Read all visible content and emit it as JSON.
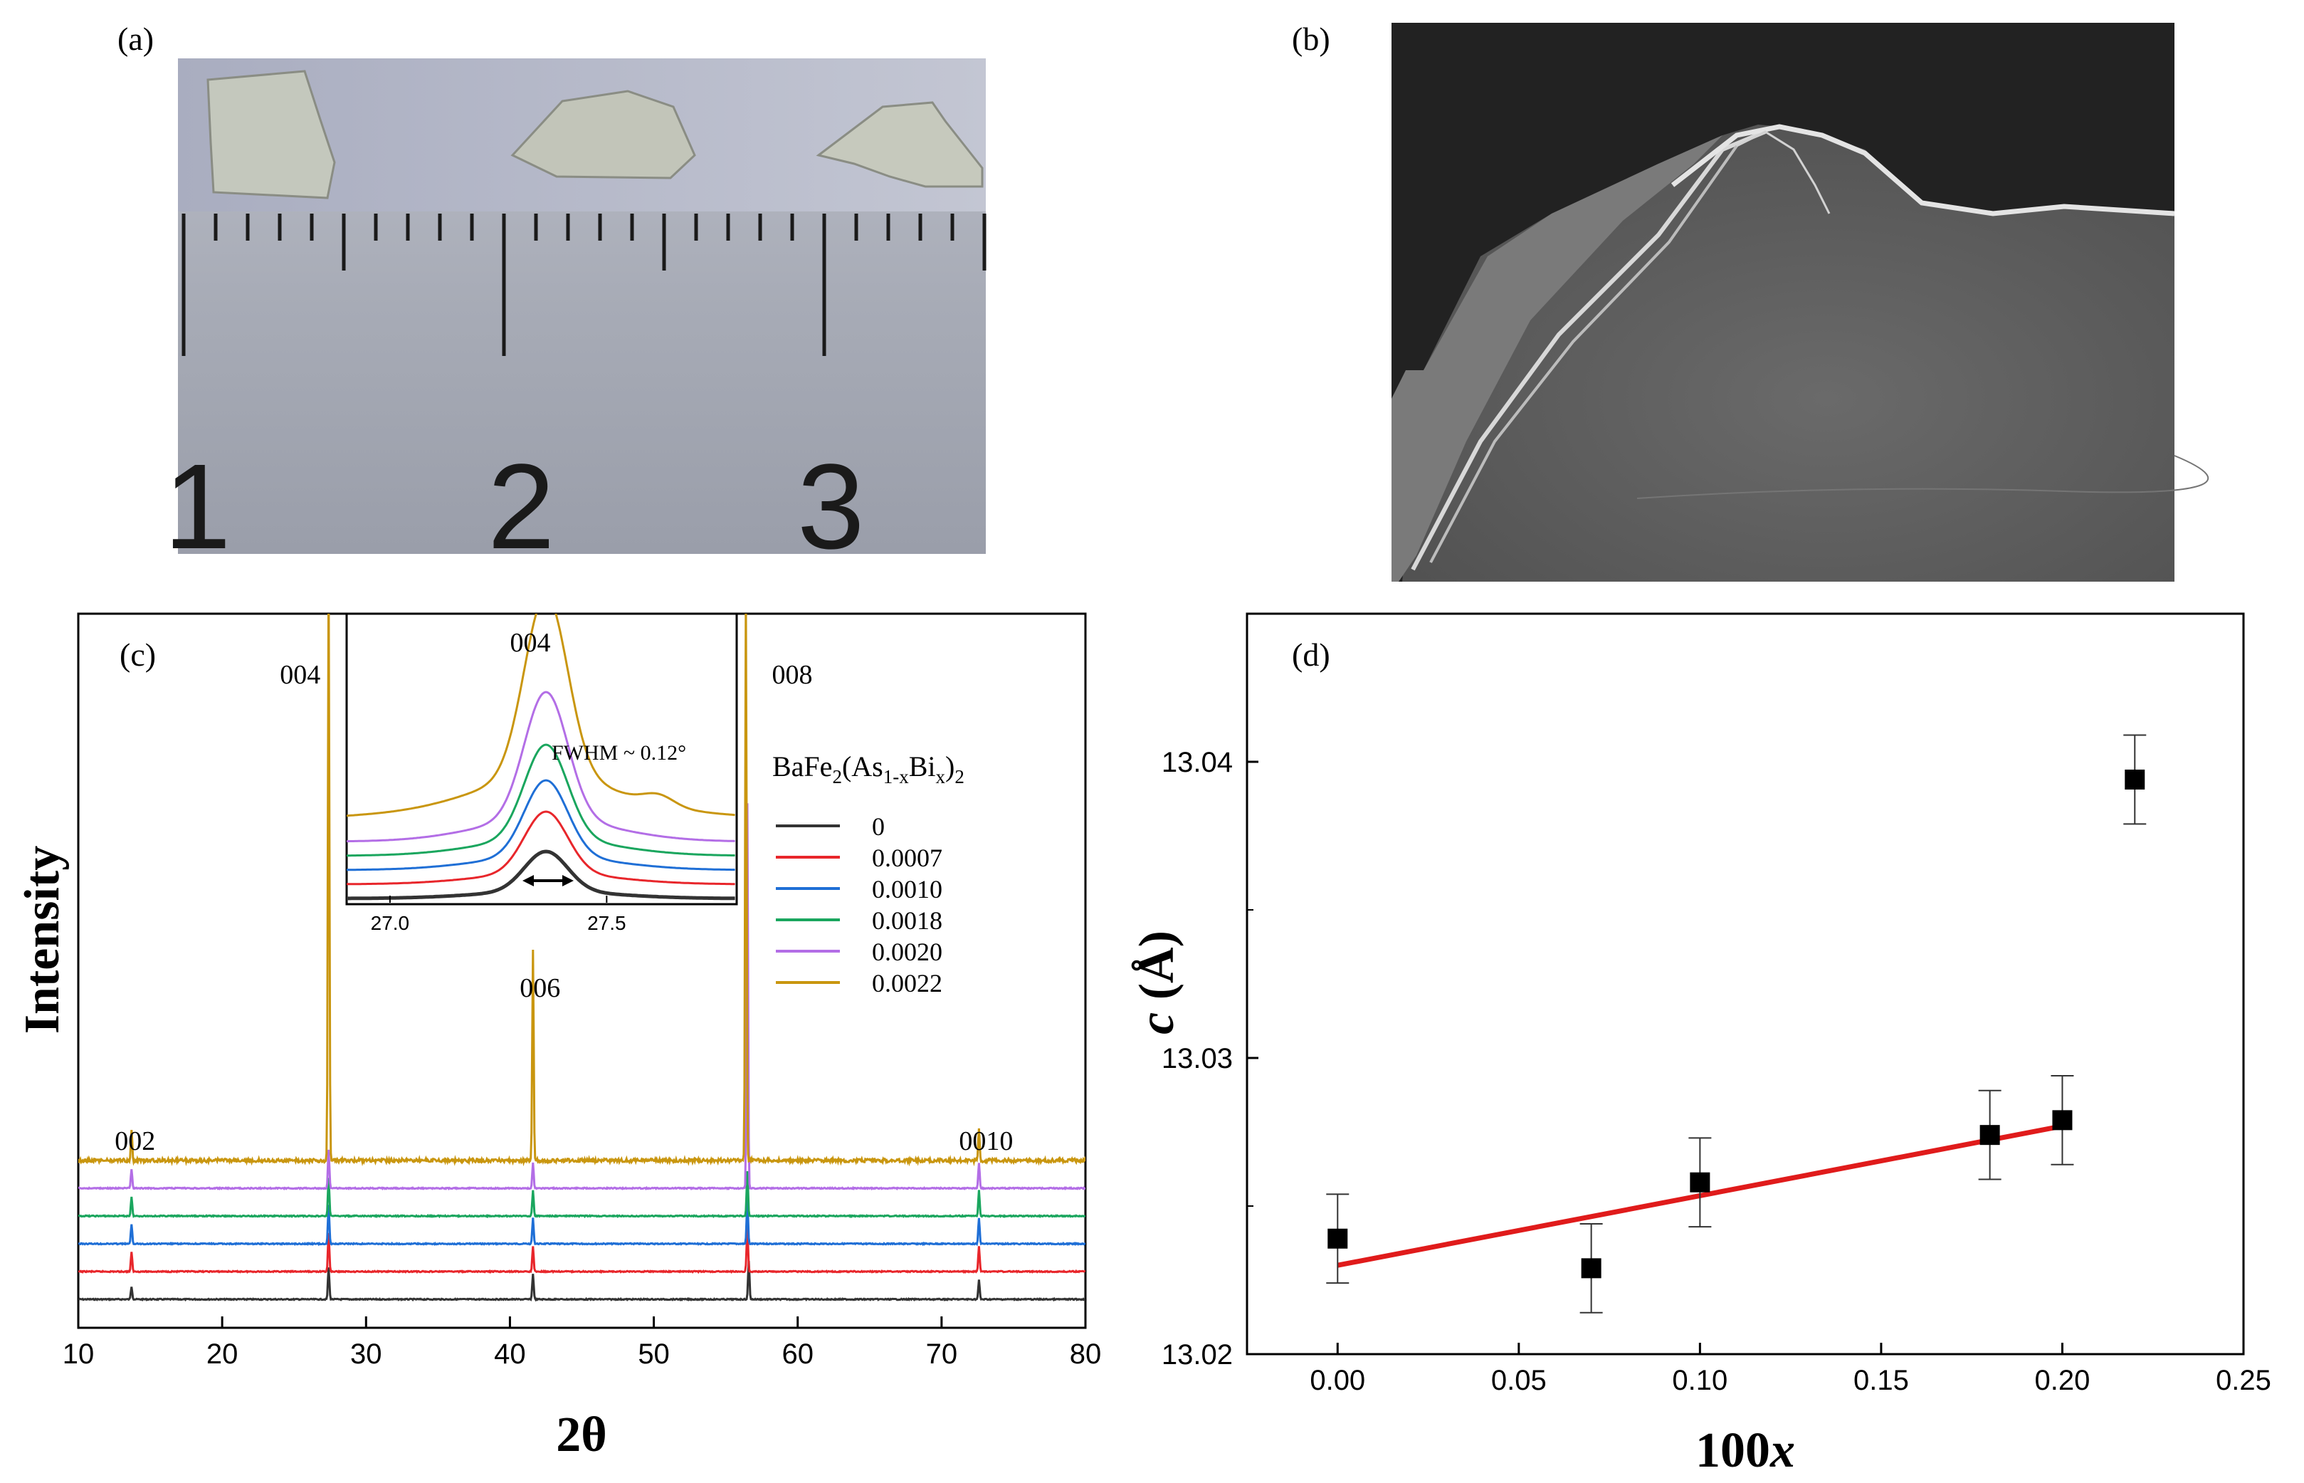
{
  "panels": {
    "a": {
      "label": "(a)",
      "ruler_numbers": [
        "1",
        "2",
        "3"
      ]
    },
    "b": {
      "label": "(b)"
    },
    "c": {
      "label": "(c)"
    },
    "d": {
      "label": "(d)"
    }
  },
  "colors": {
    "black": "#000000",
    "red": "#e8262b",
    "blue": "#1f6fd6",
    "green": "#1aa65e",
    "purple": "#b36ee6",
    "gold": "#c9960f",
    "fit_line": "#e01b1b"
  },
  "chart_data": [
    {
      "type": "line",
      "panel": "c",
      "xlabel": "2θ",
      "ylabel": "Intensity",
      "xlim": [
        10,
        80
      ],
      "xticks": [
        "10",
        "20",
        "30",
        "40",
        "50",
        "60",
        "70",
        "80"
      ],
      "peak_labels": [
        {
          "text": "002",
          "x": 13.7
        },
        {
          "text": "004",
          "x": 27.4
        },
        {
          "text": "006",
          "x": 41.6
        },
        {
          "text": "008",
          "x": 56.4
        },
        {
          "text": "0010",
          "x": 72.6
        }
      ],
      "legend_title": "BaFe2(As1-xBix)2",
      "series": [
        {
          "name": "0",
          "color": "#333333",
          "offset": 0,
          "peaks": [
            {
              "x": 13.7,
              "h": 0.02
            },
            {
              "x": 27.4,
              "h": 0.05
            },
            {
              "x": 41.6,
              "h": 0.04
            },
            {
              "x": 56.6,
              "h": 0.06
            },
            {
              "x": 72.6,
              "h": 0.03
            }
          ]
        },
        {
          "name": "0.0007",
          "color": "#e8262b",
          "offset": 1,
          "peaks": [
            {
              "x": 13.7,
              "h": 0.03
            },
            {
              "x": 27.4,
              "h": 0.06
            },
            {
              "x": 41.6,
              "h": 0.04
            },
            {
              "x": 56.5,
              "h": 0.07
            },
            {
              "x": 72.6,
              "h": 0.04
            }
          ]
        },
        {
          "name": "0.0010",
          "color": "#1f6fd6",
          "offset": 2,
          "peaks": [
            {
              "x": 13.7,
              "h": 0.03
            },
            {
              "x": 27.4,
              "h": 0.06
            },
            {
              "x": 41.6,
              "h": 0.04
            },
            {
              "x": 56.5,
              "h": 0.07
            },
            {
              "x": 72.6,
              "h": 0.04
            }
          ]
        },
        {
          "name": "0.0018",
          "color": "#1aa65e",
          "offset": 3,
          "peaks": [
            {
              "x": 13.7,
              "h": 0.03
            },
            {
              "x": 27.4,
              "h": 0.06
            },
            {
              "x": 41.6,
              "h": 0.04
            },
            {
              "x": 56.5,
              "h": 0.07
            },
            {
              "x": 72.6,
              "h": 0.04
            }
          ]
        },
        {
          "name": "0.0020",
          "color": "#b36ee6",
          "offset": 4,
          "peaks": [
            {
              "x": 13.7,
              "h": 0.03
            },
            {
              "x": 27.4,
              "h": 0.06
            },
            {
              "x": 41.6,
              "h": 0.04
            },
            {
              "x": 56.5,
              "h": 0.6
            },
            {
              "x": 72.6,
              "h": 0.04
            }
          ]
        },
        {
          "name": "0.0022",
          "color": "#c9960f",
          "offset": 5,
          "peaks": [
            {
              "x": 13.7,
              "h": 0.05
            },
            {
              "x": 27.4,
              "h": 0.93
            },
            {
              "x": 41.6,
              "h": 0.33
            },
            {
              "x": 56.4,
              "h": 0.89
            },
            {
              "x": 72.6,
              "h": 0.05
            }
          ]
        }
      ],
      "inset": {
        "label": "004",
        "fwhm_text": "FWHM ~ 0.12°",
        "xlim": [
          26.9,
          27.8
        ],
        "xticks": [
          "27.0",
          "27.5"
        ],
        "center": 27.36,
        "series_heights": [
          0.22,
          0.34,
          0.42,
          0.52,
          0.7,
          1.0
        ]
      }
    },
    {
      "type": "scatter",
      "panel": "d",
      "xlabel": "100x",
      "ylabel": "c (Å)",
      "xlim": [
        -0.025,
        0.25
      ],
      "ylim": [
        13.02,
        13.045
      ],
      "xticks": [
        "0.00",
        "0.05",
        "0.10",
        "0.15",
        "0.20",
        "0.25"
      ],
      "yticks": [
        "13.02",
        "13.03",
        "13.04"
      ],
      "points": [
        {
          "x": 0.0,
          "y": 13.0239,
          "err": 0.0015
        },
        {
          "x": 0.07,
          "y": 13.0229,
          "err": 0.0015
        },
        {
          "x": 0.1,
          "y": 13.0258,
          "err": 0.0015
        },
        {
          "x": 0.18,
          "y": 13.0274,
          "err": 0.0015
        },
        {
          "x": 0.2,
          "y": 13.0279,
          "err": 0.0015
        },
        {
          "x": 0.22,
          "y": 13.0394,
          "err": 0.0015
        }
      ],
      "fit": {
        "x0": 0.0,
        "y0": 13.023,
        "x1": 0.2,
        "y1": 13.0277
      }
    }
  ]
}
